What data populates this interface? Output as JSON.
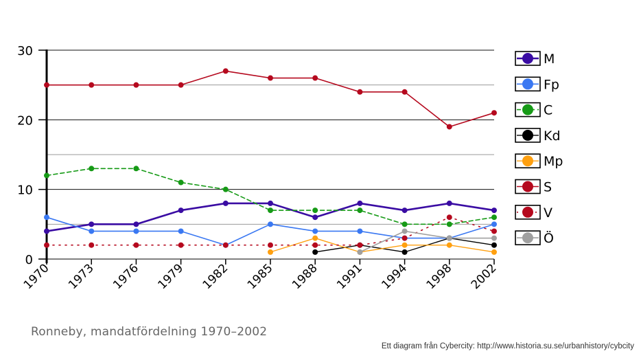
{
  "chart_data": {
    "type": "line",
    "title": "Ronneby, mandatfördelning 1970–2002",
    "xlabel": "",
    "ylabel": "",
    "categories": [
      "1970",
      "1973",
      "1976",
      "1979",
      "1982",
      "1985",
      "1988",
      "1991",
      "1994",
      "1998",
      "2002"
    ],
    "ylim": [
      0,
      30
    ],
    "yticks": [
      0,
      10,
      20,
      30
    ],
    "grid": true,
    "legend": "right",
    "series": [
      {
        "name": "M",
        "color": "#3a0ca3",
        "dash": "solid",
        "width": 2.6,
        "values": [
          4,
          5,
          5,
          7,
          8,
          8,
          6,
          8,
          7,
          8,
          7
        ]
      },
      {
        "name": "Fp",
        "color": "#3a78f2",
        "dash": "solid",
        "width": 1.6,
        "values": [
          6,
          4,
          4,
          4,
          2,
          5,
          4,
          4,
          3,
          3,
          5
        ]
      },
      {
        "name": "C",
        "color": "#169a16",
        "dash": "dashed",
        "width": 1.6,
        "values": [
          12,
          13,
          13,
          11,
          10,
          7,
          7,
          7,
          5,
          5,
          6
        ]
      },
      {
        "name": "Kd",
        "color": "#000000",
        "dash": "solid",
        "width": 1.4,
        "values": [
          null,
          null,
          null,
          null,
          null,
          null,
          1,
          2,
          1,
          3,
          2
        ]
      },
      {
        "name": "Mp",
        "color": "#ffa010",
        "dash": "solid",
        "width": 1.4,
        "values": [
          null,
          null,
          null,
          null,
          null,
          1,
          3,
          1,
          2,
          2,
          1
        ]
      },
      {
        "name": "S",
        "color": "#b5091e",
        "dash": "solid",
        "width": 1.6,
        "values": [
          25,
          25,
          25,
          25,
          27,
          26,
          26,
          24,
          24,
          19,
          21
        ]
      },
      {
        "name": "V",
        "color": "#b5091e",
        "dash": "dotted",
        "width": 1.6,
        "values": [
          2,
          2,
          2,
          2,
          2,
          2,
          2,
          2,
          3,
          6,
          4
        ]
      },
      {
        "name": "Ö",
        "color": "#a0a0a0",
        "dash": "solid",
        "width": 1.6,
        "values": [
          null,
          null,
          null,
          null,
          null,
          null,
          null,
          1,
          4,
          3,
          3
        ]
      }
    ]
  },
  "footer": {
    "subtitle": "Ronneby, mandatfördelning 1970–2002",
    "credit": "Ett diagram från Cybercity: http://www.historia.su.se/urbanhistory/cybcity"
  }
}
